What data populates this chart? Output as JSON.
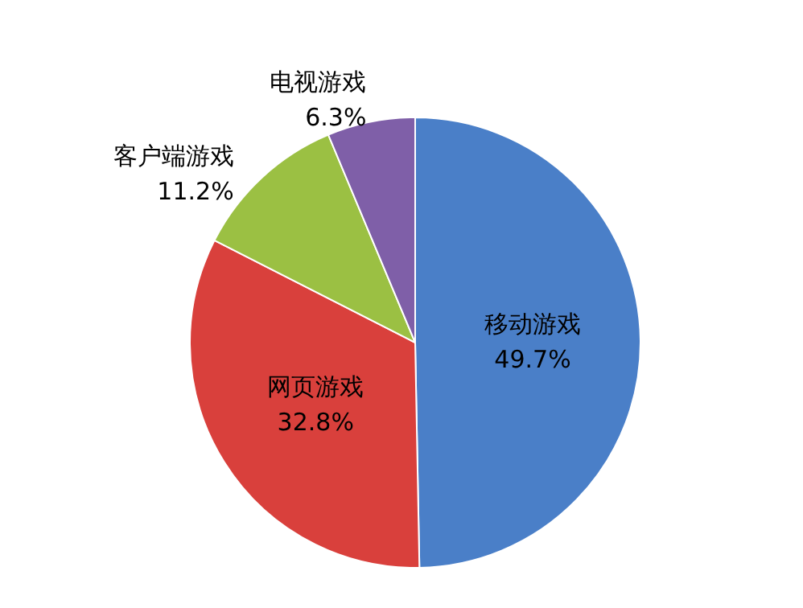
{
  "chart_data": {
    "type": "pie",
    "categories": [
      "移动游戏",
      "网页游戏",
      "客户端游戏",
      "电视游戏"
    ],
    "values": [
      49.7,
      32.8,
      11.2,
      6.3
    ],
    "value_labels": [
      "49.7%",
      "32.8%",
      "11.2%",
      "6.3%"
    ],
    "colors": [
      "#4a7fc8",
      "#d9403c",
      "#9bc043",
      "#7f5fa8"
    ],
    "legend": false
  }
}
